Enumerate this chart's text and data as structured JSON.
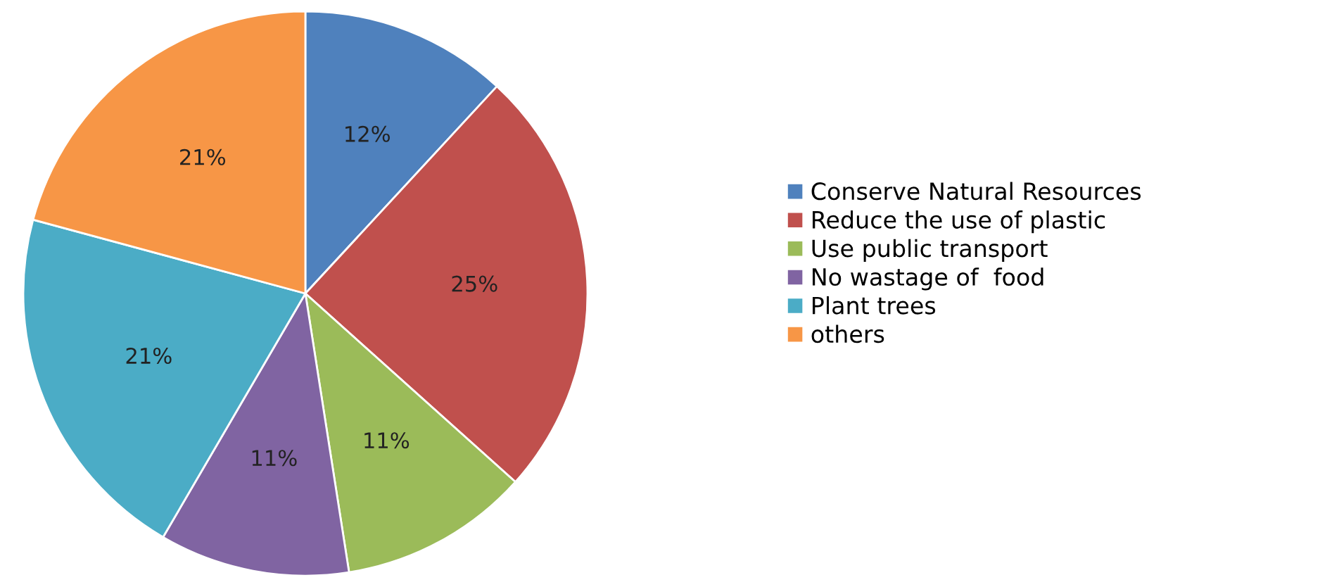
{
  "chart_data": {
    "type": "pie",
    "categories": [
      "Conserve Natural Resources",
      "Reduce the use of plastic",
      "Use public transport",
      "No wastage of  food",
      "Plant trees",
      "others"
    ],
    "values": [
      12,
      25,
      11,
      11,
      21,
      21
    ],
    "colors": [
      "#4f81bd",
      "#c0504d",
      "#9bbb59",
      "#8064a2",
      "#4bacc6",
      "#f79646"
    ],
    "value_labels": [
      "12%",
      "25%",
      "11%",
      "11%",
      "21%",
      "21%"
    ],
    "legend": "right"
  }
}
